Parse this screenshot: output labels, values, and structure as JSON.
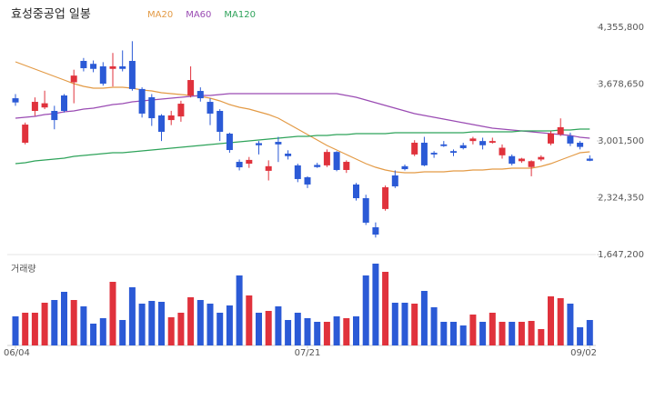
{
  "chart_data": {
    "type": "candlestick",
    "title": "효성중공업 일봉",
    "volume_label": "거래량",
    "categories": [
      "06/04",
      null,
      null,
      null,
      null,
      null,
      null,
      null,
      null,
      null,
      null,
      null,
      null,
      null,
      null,
      null,
      null,
      null,
      null,
      null,
      null,
      null,
      null,
      null,
      null,
      null,
      null,
      null,
      null,
      null,
      "07/21",
      null,
      null,
      null,
      null,
      null,
      null,
      null,
      null,
      null,
      null,
      null,
      null,
      null,
      null,
      null,
      null,
      null,
      null,
      null,
      null,
      null,
      null,
      null,
      null,
      null,
      null,
      null,
      null,
      "09/02"
    ],
    "open": [
      3510000,
      2980000,
      3359000,
      3400000,
      3359000,
      3543000,
      3700000,
      3955000,
      3920000,
      3890000,
      3860000,
      3890000,
      3955000,
      3620000,
      3522000,
      3305000,
      3250000,
      3293000,
      3543000,
      3597000,
      3467000,
      3359000,
      3088000,
      2752000,
      2730000,
      2975000,
      2645000,
      2990000,
      2850000,
      2710000,
      2568000,
      2715000,
      2710000,
      2870000,
      2655000,
      2482000,
      2319000,
      1972000,
      2190000,
      2590000,
      2700000,
      2840000,
      2980000,
      2860000,
      2960000,
      2880000,
      2950000,
      3000000,
      3000000,
      2980000,
      2830000,
      2820000,
      2760000,
      2690000,
      2780000,
      2970000,
      3080000,
      3060000,
      2980000,
      2790000
    ],
    "high": [
      3560000,
      3220000,
      3520000,
      3600000,
      3420000,
      3560000,
      3850000,
      3990000,
      3960000,
      3940000,
      4050000,
      4080000,
      4190000,
      3640000,
      3560000,
      3320000,
      3360000,
      3480000,
      3890000,
      3640000,
      3510000,
      3380000,
      3100000,
      2780000,
      2810000,
      3000000,
      2770000,
      3050000,
      2890000,
      2730000,
      2580000,
      2740000,
      2900000,
      2880000,
      2770000,
      2500000,
      2360000,
      2030000,
      2470000,
      2650000,
      2720000,
      3010000,
      3050000,
      2880000,
      3000000,
      2900000,
      2980000,
      3050000,
      3040000,
      3040000,
      2960000,
      2840000,
      2800000,
      2770000,
      2830000,
      3120000,
      3270000,
      3100000,
      3000000,
      2830000
    ],
    "low": [
      3420000,
      2960000,
      3300000,
      3380000,
      3140000,
      3340000,
      3450000,
      3830000,
      3820000,
      3660000,
      3650000,
      3830000,
      3600000,
      3280000,
      3180000,
      3000000,
      3190000,
      3230000,
      3520000,
      3470000,
      3190000,
      3000000,
      2860000,
      2650000,
      2680000,
      2840000,
      2530000,
      2750000,
      2780000,
      2510000,
      2440000,
      2680000,
      2690000,
      2640000,
      2620000,
      2290000,
      2000000,
      1850000,
      2170000,
      2440000,
      2650000,
      2820000,
      2700000,
      2800000,
      2930000,
      2820000,
      2900000,
      2960000,
      2900000,
      2970000,
      2790000,
      2710000,
      2740000,
      2580000,
      2760000,
      2950000,
      3060000,
      2940000,
      2900000,
      2760000
    ],
    "close": [
      3460000,
      3196000,
      3467000,
      3450000,
      3250000,
      3359000,
      3780000,
      3868000,
      3860000,
      3684000,
      3890000,
      3860000,
      3620000,
      3327000,
      3272000,
      3110000,
      3305000,
      3445000,
      3727000,
      3510000,
      3327000,
      3110000,
      2893000,
      2687000,
      2775000,
      2950000,
      2700000,
      2960000,
      2820000,
      2547000,
      2482000,
      2690000,
      2870000,
      2655000,
      2752000,
      2319000,
      2027000,
      1885000,
      2449000,
      2460000,
      2665000,
      2980000,
      2710000,
      2840000,
      2940000,
      2860000,
      2915000,
      3030000,
      2950000,
      3000000,
      2920000,
      2730000,
      2790000,
      2760000,
      2810000,
      3090000,
      3165000,
      2970000,
      2930000,
      2765000
    ],
    "volume": [
      32,
      36,
      36,
      47,
      50,
      59,
      50,
      43,
      24,
      30,
      70,
      28,
      64,
      46,
      49,
      48,
      31,
      36,
      53,
      50,
      46,
      36,
      44,
      77,
      55,
      36,
      38,
      43,
      28,
      36,
      30,
      26,
      26,
      32,
      30,
      32,
      77,
      90,
      81,
      47,
      47,
      46,
      60,
      42,
      26,
      26,
      22,
      34,
      26,
      36,
      26,
      26,
      26,
      27,
      18,
      54,
      52,
      46,
      20,
      28
    ],
    "vlim": [
      0,
      95
    ],
    "up_color": "#e0323c",
    "down_color": "#2b5ad6",
    "series": [
      {
        "name": "MA20",
        "color": "#e39a45",
        "values": [
          3944000,
          3901000,
          3857000,
          3814000,
          3771000,
          3727000,
          3684000,
          3652000,
          3630000,
          3630000,
          3641000,
          3641000,
          3630000,
          3608000,
          3597000,
          3576000,
          3565000,
          3554000,
          3543000,
          3532000,
          3511000,
          3478000,
          3435000,
          3402000,
          3381000,
          3348000,
          3316000,
          3272000,
          3207000,
          3142000,
          3077000,
          3012000,
          2947000,
          2893000,
          2839000,
          2785000,
          2731000,
          2687000,
          2655000,
          2633000,
          2622000,
          2622000,
          2633000,
          2633000,
          2633000,
          2644000,
          2644000,
          2655000,
          2655000,
          2666000,
          2666000,
          2677000,
          2677000,
          2677000,
          2698000,
          2731000,
          2774000,
          2817000,
          2861000,
          2872000
        ]
      },
      {
        "name": "MA60",
        "color": "#9a4bb3",
        "values": [
          3272000,
          3283000,
          3294000,
          3316000,
          3327000,
          3348000,
          3359000,
          3381000,
          3392000,
          3413000,
          3435000,
          3446000,
          3467000,
          3478000,
          3489000,
          3500000,
          3511000,
          3522000,
          3532000,
          3543000,
          3543000,
          3554000,
          3565000,
          3565000,
          3565000,
          3565000,
          3565000,
          3565000,
          3565000,
          3565000,
          3565000,
          3565000,
          3565000,
          3565000,
          3543000,
          3522000,
          3489000,
          3457000,
          3424000,
          3392000,
          3359000,
          3327000,
          3305000,
          3283000,
          3262000,
          3240000,
          3218000,
          3197000,
          3175000,
          3153000,
          3142000,
          3132000,
          3121000,
          3110000,
          3099000,
          3088000,
          3077000,
          3067000,
          3045000,
          3034000
        ]
      },
      {
        "name": "MA120",
        "color": "#2ea35a",
        "values": [
          2731000,
          2742000,
          2763000,
          2774000,
          2785000,
          2796000,
          2817000,
          2828000,
          2839000,
          2850000,
          2861000,
          2861000,
          2872000,
          2882000,
          2893000,
          2904000,
          2915000,
          2926000,
          2937000,
          2947000,
          2958000,
          2969000,
          2980000,
          2991000,
          3002000,
          3012000,
          3023000,
          3034000,
          3045000,
          3056000,
          3056000,
          3067000,
          3067000,
          3077000,
          3077000,
          3088000,
          3088000,
          3088000,
          3088000,
          3099000,
          3099000,
          3099000,
          3099000,
          3099000,
          3099000,
          3099000,
          3099000,
          3110000,
          3110000,
          3110000,
          3110000,
          3110000,
          3121000,
          3121000,
          3121000,
          3121000,
          3132000,
          3132000,
          3142000,
          3142000
        ]
      }
    ],
    "ylim": [
      1647200,
      4355800
    ],
    "yticks": [
      {
        "value": 4355800,
        "label": "4,355,800"
      },
      {
        "value": 3678650,
        "label": "3,678,650"
      },
      {
        "value": 3001500,
        "label": "3,001,500"
      },
      {
        "value": 2324350,
        "label": "2,324,350"
      },
      {
        "value": 1647200,
        "label": "1,647,200"
      }
    ],
    "grid": false
  }
}
